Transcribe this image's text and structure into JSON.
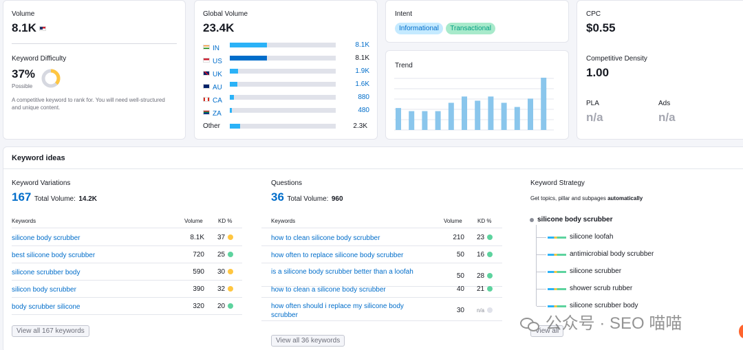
{
  "volume": {
    "label": "Volume",
    "value": "8.1K"
  },
  "difficulty": {
    "label": "Keyword Difficulty",
    "value": "37%",
    "level": "Possible",
    "percent": 37,
    "desc": "A competitive keyword to rank for. You will need well-structured and unique content."
  },
  "global": {
    "label": "Global Volume",
    "value": "23.4K",
    "countries": [
      {
        "code": "IN",
        "value": "8.1K",
        "fill": 0.35,
        "color": "#2bb2f7"
      },
      {
        "code": "US",
        "value": "8.1K",
        "fill": 0.35,
        "color": "#006dca"
      },
      {
        "code": "UK",
        "value": "1.9K",
        "fill": 0.08,
        "color": "#2bb2f7"
      },
      {
        "code": "AU",
        "value": "1.6K",
        "fill": 0.07,
        "color": "#2bb2f7"
      },
      {
        "code": "CA",
        "value": "880",
        "fill": 0.04,
        "color": "#2bb2f7"
      },
      {
        "code": "ZA",
        "value": "480",
        "fill": 0.02,
        "color": "#2bb2f7"
      }
    ],
    "other_label": "Other",
    "other_value": "2.3K",
    "other_fill": 0.1
  },
  "intent": {
    "label": "Intent",
    "tags": [
      "Informational",
      "Transactional"
    ]
  },
  "trend": {
    "label": "Trend",
    "values": [
      0.42,
      0.36,
      0.36,
      0.36,
      0.52,
      0.64,
      0.56,
      0.64,
      0.52,
      0.44,
      0.6,
      1.0
    ]
  },
  "cpc": {
    "label": "CPC",
    "value": "$0.55"
  },
  "density": {
    "label": "Competitive Density",
    "value": "1.00"
  },
  "pla": {
    "label": "PLA",
    "value": "n/a"
  },
  "ads": {
    "label": "Ads",
    "value": "n/a"
  },
  "ideas": {
    "title": "Keyword ideas",
    "variations": {
      "title": "Keyword Variations",
      "count": "167",
      "total_label": "Total Volume:",
      "total": "14.2K",
      "col_kw": "Keywords",
      "col_vol": "Volume",
      "col_kd": "KD %",
      "rows": [
        {
          "kw": "silicone body scrubber",
          "vol": "8.1K",
          "kd": "37",
          "color": "#ffc641"
        },
        {
          "kw": "best silicone body scrubber",
          "vol": "720",
          "kd": "25",
          "color": "#5dd39e"
        },
        {
          "kw": "silicone scrubber body",
          "vol": "590",
          "kd": "30",
          "color": "#ffc641"
        },
        {
          "kw": "silicon body scrubber",
          "vol": "390",
          "kd": "32",
          "color": "#ffc641"
        },
        {
          "kw": "body scrubber silicone",
          "vol": "320",
          "kd": "20",
          "color": "#5dd39e"
        }
      ],
      "button": "View all 167 keywords"
    },
    "questions": {
      "title": "Questions",
      "count": "36",
      "total_label": "Total Volume:",
      "total": "960",
      "col_kw": "Keywords",
      "col_vol": "Volume",
      "col_kd": "KD %",
      "rows": [
        {
          "kw": "how to clean silicone body scrubber",
          "vol": "210",
          "kd": "23",
          "color": "#5dd39e"
        },
        {
          "kw": "how often to replace silicone body scrubber",
          "vol": "50",
          "kd": "16",
          "color": "#5dd39e"
        },
        {
          "kw": "is a silicone body scrubber better than a loofah",
          "vol": "50",
          "kd": "28",
          "color": "#5dd39e"
        },
        {
          "kw": "how to clean a silicone body scrubber",
          "vol": "40",
          "kd": "21",
          "color": "#5dd39e"
        },
        {
          "kw": "how often should i replace my silicone body scrubber",
          "vol": "30",
          "kd": "n/a",
          "color": "#e0e2ea"
        }
      ],
      "button": "View all 36 keywords"
    },
    "strategy": {
      "title": "Keyword Strategy",
      "desc": "Get topics, pillar and subpages",
      "desc_bold": "automatically",
      "root": "silicone body scrubber",
      "items": [
        "silicone loofah",
        "antimicrobial body scrubber",
        "silicone scrubber",
        "shower scrub rubber",
        "silicone scrubber body"
      ],
      "button": "View all"
    }
  },
  "watermark": "公众号 · SEO 喵喵"
}
